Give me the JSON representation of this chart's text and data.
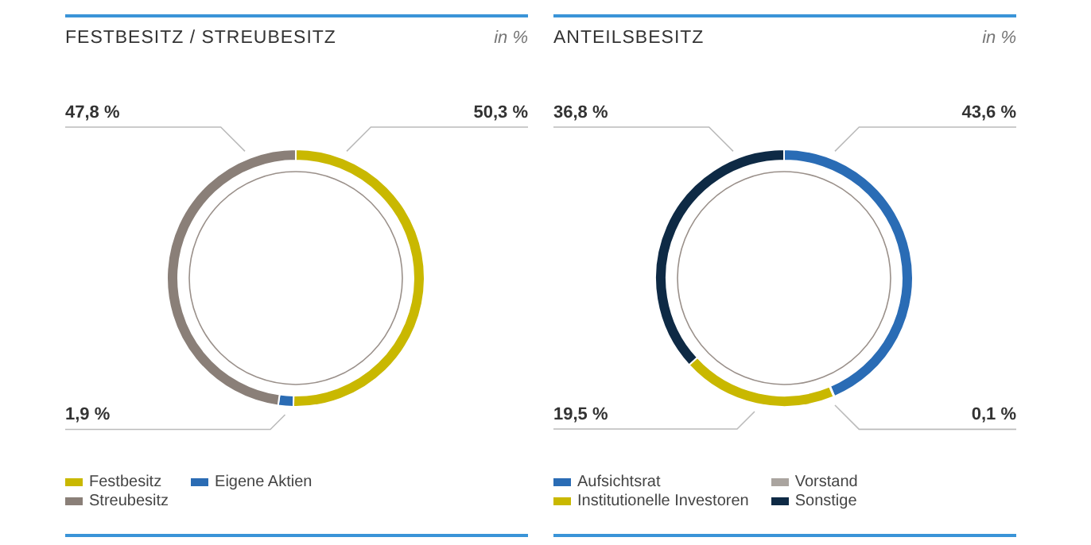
{
  "chart_data": [
    {
      "type": "donut",
      "title": "FESTBESITZ / STREUBESITZ",
      "subtitle": "in %",
      "categories": [
        "Festbesitz",
        "Eigene Aktien",
        "Streubesitz"
      ],
      "values": [
        50.3,
        1.9,
        47.8
      ],
      "colors": [
        "#c9b800",
        "#2b6cb4",
        "#8a7f78"
      ],
      "value_labels": [
        "50,3 %",
        "1,9 %",
        "47,8 %"
      ],
      "legend": "bottom"
    },
    {
      "type": "donut",
      "title": "ANTEILSBESITZ",
      "subtitle": "in %",
      "categories": [
        "Aufsichtsrat",
        "Vorstand",
        "Institutionelle Investoren",
        "Sonstige"
      ],
      "values": [
        43.6,
        0.1,
        19.5,
        36.8
      ],
      "colors": [
        "#2a6cb5",
        "#aaa49f",
        "#c9b800",
        "#0e2a45"
      ],
      "value_labels": [
        "43,6 %",
        "0,1 %",
        "19,5 %",
        "36,8 %"
      ],
      "legend": "bottom"
    }
  ]
}
